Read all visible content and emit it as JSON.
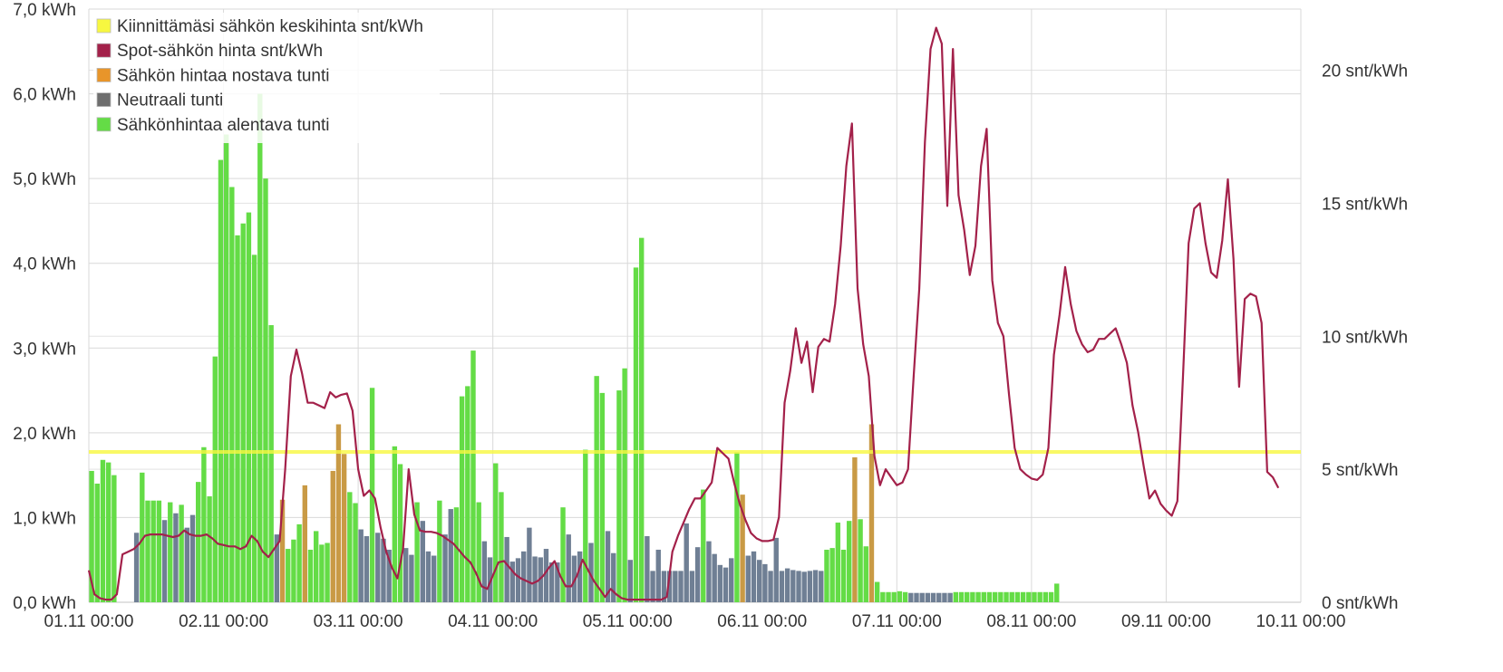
{
  "chart_data": {
    "type": "bar",
    "title": "",
    "xlabel": "",
    "ylabel": "",
    "legend_position": "top-left",
    "grid": true,
    "legend": [
      {
        "key": "fixed",
        "label": "Kiinnittämäsi sähkön keskihinta snt/kWh",
        "color": "#f7f740"
      },
      {
        "key": "spot",
        "label": "Spot-sähkön hinta snt/kWh",
        "color": "#a3214a"
      },
      {
        "key": "raise",
        "label": "Sähkön hintaa nostava tunti",
        "color": "#e8952a"
      },
      {
        "key": "neutral",
        "label": "Neutraali tunti",
        "color": "#6e6e6e"
      },
      {
        "key": "lower",
        "label": "Sähkönhintaa alentava tunti",
        "color": "#64dc46"
      }
    ],
    "y_left": {
      "min": 0,
      "max": 7,
      "unit": "kWh",
      "ticks": [
        "0,0 kWh",
        "1,0 kWh",
        "2,0 kWh",
        "3,0 kWh",
        "4,0 kWh",
        "5,0 kWh",
        "6,0 kWh",
        "7,0 kWh"
      ]
    },
    "y_right": {
      "min": 0,
      "max": 22.3,
      "unit": "snt/kWh",
      "ticks": [
        "0 snt/kWh",
        "5 snt/kWh",
        "10 snt/kWh",
        "15 snt/kWh",
        "20 snt/kWh"
      ],
      "tick_values": [
        0,
        5,
        10,
        15,
        20
      ]
    },
    "x_ticks": [
      "01.11 00:00",
      "02.11 00:00",
      "03.11 00:00",
      "04.11 00:00",
      "05.11 00:00",
      "06.11 00:00",
      "07.11 00:00",
      "08.11 00:00",
      "09.11 00:00",
      "10.11 00:00"
    ],
    "hours_total": 216,
    "fixed_price": 5.65,
    "consumption_segments": [
      {
        "t": "g",
        "v": [
          1.55,
          1.4,
          1.68,
          1.65,
          1.5
        ]
      },
      {
        "t": "e",
        "v": [
          0,
          0,
          0
        ]
      },
      {
        "t": "n",
        "v": [
          0.82
        ]
      },
      {
        "t": "g",
        "v": [
          1.53,
          1.2,
          1.2,
          1.2
        ]
      },
      {
        "t": "n",
        "v": [
          0.97
        ]
      },
      {
        "t": "g",
        "v": [
          1.18
        ]
      },
      {
        "t": "n",
        "v": [
          1.05
        ]
      },
      {
        "t": "g",
        "v": [
          1.15
        ]
      },
      {
        "t": "n",
        "v": [
          0.88,
          1.03
        ]
      },
      {
        "t": "g",
        "v": [
          1.42,
          1.83,
          1.25,
          2.9,
          5.22,
          5.52,
          4.9,
          4.33,
          4.47,
          4.6,
          4.1,
          6.0,
          5.0,
          3.27
        ]
      },
      {
        "t": "n",
        "v": [
          0.8
        ]
      },
      {
        "t": "r",
        "v": [
          1.21
        ]
      },
      {
        "t": "g",
        "v": [
          0.63,
          0.74,
          0.92
        ]
      },
      {
        "t": "r",
        "v": [
          1.38
        ]
      },
      {
        "t": "g",
        "v": [
          0.62,
          0.84,
          0.68,
          0.7
        ]
      },
      {
        "t": "r",
        "v": [
          1.55,
          2.1,
          1.75
        ]
      },
      {
        "t": "g",
        "v": [
          1.3,
          1.17
        ]
      },
      {
        "t": "n",
        "v": [
          0.86,
          0.78
        ]
      },
      {
        "t": "g",
        "v": [
          2.53
        ]
      },
      {
        "t": "n",
        "v": [
          0.82,
          0.75,
          0.62
        ]
      },
      {
        "t": "g",
        "v": [
          1.84,
          1.63
        ]
      },
      {
        "t": "n",
        "v": [
          0.64,
          0.56
        ]
      },
      {
        "t": "g",
        "v": [
          1.18
        ]
      },
      {
        "t": "n",
        "v": [
          0.96,
          0.6,
          0.55
        ]
      },
      {
        "t": "g",
        "v": [
          1.2
        ]
      },
      {
        "t": "n",
        "v": [
          0.8,
          1.1
        ]
      },
      {
        "t": "g",
        "v": [
          1.12,
          2.43,
          2.55,
          2.97,
          1.18
        ]
      },
      {
        "t": "n",
        "v": [
          0.72,
          0.53
        ]
      },
      {
        "t": "g",
        "v": [
          1.64,
          1.3
        ]
      },
      {
        "t": "n",
        "v": [
          0.77,
          0.48,
          0.52,
          0.6,
          0.88,
          0.54,
          0.53,
          0.63,
          0.47,
          0.47
        ]
      },
      {
        "t": "g",
        "v": [
          1.12
        ]
      },
      {
        "t": "n",
        "v": [
          0.8,
          0.55,
          0.6
        ]
      },
      {
        "t": "g",
        "v": [
          1.8
        ]
      },
      {
        "t": "n",
        "v": [
          0.7
        ]
      },
      {
        "t": "g",
        "v": [
          2.67,
          2.47
        ]
      },
      {
        "t": "n",
        "v": [
          0.84,
          0.58
        ]
      },
      {
        "t": "g",
        "v": [
          2.5,
          2.76
        ]
      },
      {
        "t": "n",
        "v": [
          0.5
        ]
      },
      {
        "t": "g",
        "v": [
          3.95,
          4.3
        ]
      },
      {
        "t": "n",
        "v": [
          0.78,
          0.37,
          0.62,
          0.37,
          0.37,
          0.37,
          0.37,
          0.93,
          0.37,
          0.65
        ]
      },
      {
        "t": "g",
        "v": [
          1.33
        ]
      },
      {
        "t": "n",
        "v": [
          0.72,
          0.57,
          0.44,
          0.41,
          0.52
        ]
      },
      {
        "t": "g",
        "v": [
          1.77
        ]
      },
      {
        "t": "r",
        "v": [
          1.27
        ]
      },
      {
        "t": "n",
        "v": [
          0.55,
          0.6,
          0.5,
          0.45,
          0.37,
          0.76,
          0.37,
          0.4,
          0.38,
          0.37,
          0.36,
          0.37,
          0.38,
          0.37
        ]
      },
      {
        "t": "g",
        "v": [
          0.62,
          0.64,
          0.94,
          0.62,
          0.96
        ]
      },
      {
        "t": "r",
        "v": [
          1.71
        ]
      },
      {
        "t": "g",
        "v": [
          0.98,
          0.66
        ]
      },
      {
        "t": "r",
        "v": [
          2.1
        ]
      },
      {
        "t": "g",
        "v": [
          0.24,
          0.12,
          0.12,
          0.12,
          0.13,
          0.12
        ]
      },
      {
        "t": "n",
        "v": [
          0.11,
          0.11,
          0.11,
          0.11,
          0.11,
          0.11,
          0.11,
          0.11
        ]
      },
      {
        "t": "g",
        "v": [
          0.12,
          0.12,
          0.12,
          0.12,
          0.12,
          0.12,
          0.12,
          0.12,
          0.12,
          0.12,
          0.12,
          0.12,
          0.12,
          0.12,
          0.12,
          0.12,
          0.12,
          0.12,
          0.22
        ]
      }
    ],
    "spot_price_points": [
      [
        0,
        1.2
      ],
      [
        1,
        0.3
      ],
      [
        2,
        0.15
      ],
      [
        3,
        0.1
      ],
      [
        4,
        0.1
      ],
      [
        5,
        0.3
      ],
      [
        6,
        1.8
      ],
      [
        7,
        1.9
      ],
      [
        8,
        2.0
      ],
      [
        9,
        2.2
      ],
      [
        10,
        2.5
      ],
      [
        11,
        2.55
      ],
      [
        12,
        2.55
      ],
      [
        13,
        2.55
      ],
      [
        14,
        2.5
      ],
      [
        15,
        2.45
      ],
      [
        16,
        2.5
      ],
      [
        17,
        2.7
      ],
      [
        18,
        2.55
      ],
      [
        19,
        2.5
      ],
      [
        20,
        2.5
      ],
      [
        21,
        2.55
      ],
      [
        22,
        2.4
      ],
      [
        23,
        2.2
      ],
      [
        24,
        2.15
      ],
      [
        25,
        2.1
      ],
      [
        26,
        2.1
      ],
      [
        27,
        2.0
      ],
      [
        28,
        2.1
      ],
      [
        29,
        2.5
      ],
      [
        30,
        2.3
      ],
      [
        31,
        1.9
      ],
      [
        32,
        1.7
      ],
      [
        33,
        2.0
      ],
      [
        34,
        2.3
      ],
      [
        35,
        5.0
      ],
      [
        36,
        8.5
      ],
      [
        37,
        9.5
      ],
      [
        38,
        8.6
      ],
      [
        39,
        7.5
      ],
      [
        40,
        7.5
      ],
      [
        41,
        7.4
      ],
      [
        42,
        7.3
      ],
      [
        43,
        7.9
      ],
      [
        44,
        7.7
      ],
      [
        45,
        7.8
      ],
      [
        46,
        7.85
      ],
      [
        47,
        7.2
      ],
      [
        48,
        5.0
      ],
      [
        49,
        4.0
      ],
      [
        50,
        4.2
      ],
      [
        51,
        3.9
      ],
      [
        52,
        2.8
      ],
      [
        53,
        1.9
      ],
      [
        54,
        1.3
      ],
      [
        55,
        0.9
      ],
      [
        56,
        2.0
      ],
      [
        57,
        5.0
      ],
      [
        58,
        3.3
      ],
      [
        59,
        2.7
      ],
      [
        60,
        2.65
      ],
      [
        61,
        2.65
      ],
      [
        62,
        2.6
      ],
      [
        63,
        2.5
      ],
      [
        64,
        2.35
      ],
      [
        65,
        2.2
      ],
      [
        66,
        1.95
      ],
      [
        67,
        1.7
      ],
      [
        68,
        1.5
      ],
      [
        69,
        1.1
      ],
      [
        70,
        0.6
      ],
      [
        71,
        0.5
      ],
      [
        72,
        1.0
      ],
      [
        73,
        1.5
      ],
      [
        74,
        1.55
      ],
      [
        75,
        1.3
      ],
      [
        76,
        1.05
      ],
      [
        77,
        0.9
      ],
      [
        78,
        0.8
      ],
      [
        79,
        0.7
      ],
      [
        80,
        0.8
      ],
      [
        81,
        1.0
      ],
      [
        82,
        1.3
      ],
      [
        83,
        1.55
      ],
      [
        84,
        1.0
      ],
      [
        85,
        0.6
      ],
      [
        86,
        0.6
      ],
      [
        87,
        1.0
      ],
      [
        88,
        1.6
      ],
      [
        89,
        1.2
      ],
      [
        90,
        0.8
      ],
      [
        91,
        0.5
      ],
      [
        92,
        0.2
      ],
      [
        93,
        0.5
      ],
      [
        94,
        0.3
      ],
      [
        95,
        0.15
      ],
      [
        96,
        0.1
      ],
      [
        97,
        0.1
      ],
      [
        98,
        0.1
      ],
      [
        99,
        0.1
      ],
      [
        100,
        0.1
      ],
      [
        101,
        0.1
      ],
      [
        102,
        0.1
      ],
      [
        103,
        0.2
      ],
      [
        104,
        1.9
      ],
      [
        105,
        2.5
      ],
      [
        106,
        3.0
      ],
      [
        107,
        3.5
      ],
      [
        108,
        3.9
      ],
      [
        109,
        3.9
      ],
      [
        110,
        4.2
      ],
      [
        111,
        4.5
      ],
      [
        112,
        5.8
      ],
      [
        113,
        5.6
      ],
      [
        114,
        5.4
      ],
      [
        115,
        4.5
      ],
      [
        116,
        3.7
      ],
      [
        117,
        3.1
      ],
      [
        118,
        2.6
      ],
      [
        119,
        2.4
      ],
      [
        120,
        2.3
      ],
      [
        121,
        2.3
      ],
      [
        122,
        2.35
      ],
      [
        123,
        3.2
      ],
      [
        124,
        7.5
      ],
      [
        125,
        8.7
      ],
      [
        126,
        10.3
      ],
      [
        127,
        9.0
      ],
      [
        128,
        9.8
      ],
      [
        129,
        7.9
      ],
      [
        130,
        9.6
      ],
      [
        131,
        9.9
      ],
      [
        132,
        9.8
      ],
      [
        133,
        11.2
      ],
      [
        134,
        13.4
      ],
      [
        135,
        16.4
      ],
      [
        136,
        18.0
      ],
      [
        137,
        11.8
      ],
      [
        138,
        9.7
      ],
      [
        139,
        8.5
      ],
      [
        140,
        5.5
      ],
      [
        141,
        4.4
      ],
      [
        142,
        5.0
      ],
      [
        143,
        4.7
      ],
      [
        144,
        4.4
      ],
      [
        145,
        4.5
      ],
      [
        146,
        5.0
      ],
      [
        147,
        8.5
      ],
      [
        148,
        11.8
      ],
      [
        149,
        17.3
      ],
      [
        150,
        20.8
      ],
      [
        151,
        21.6
      ],
      [
        152,
        21.0
      ],
      [
        153,
        14.9
      ],
      [
        154,
        20.8
      ],
      [
        155,
        15.3
      ],
      [
        156,
        14.0
      ],
      [
        157,
        12.3
      ],
      [
        158,
        13.4
      ],
      [
        159,
        16.4
      ],
      [
        160,
        17.8
      ],
      [
        161,
        12.1
      ],
      [
        162,
        10.5
      ],
      [
        163,
        10.0
      ],
      [
        164,
        7.8
      ],
      [
        165,
        5.8
      ],
      [
        166,
        5.0
      ],
      [
        167,
        4.8
      ],
      [
        168,
        4.65
      ],
      [
        169,
        4.6
      ],
      [
        170,
        4.8
      ],
      [
        171,
        5.8
      ],
      [
        172,
        9.3
      ],
      [
        173,
        10.8
      ],
      [
        174,
        12.6
      ],
      [
        175,
        11.2
      ],
      [
        176,
        10.2
      ],
      [
        177,
        9.7
      ],
      [
        178,
        9.4
      ],
      [
        179,
        9.5
      ],
      [
        180,
        9.9
      ],
      [
        181,
        9.9
      ],
      [
        182,
        10.1
      ],
      [
        183,
        10.3
      ],
      [
        184,
        9.7
      ],
      [
        185,
        9.0
      ],
      [
        186,
        7.4
      ],
      [
        187,
        6.4
      ],
      [
        188,
        5.1
      ],
      [
        189,
        3.9
      ],
      [
        190,
        4.2
      ],
      [
        191,
        3.7
      ],
      [
        192,
        3.45
      ],
      [
        193,
        3.25
      ],
      [
        194,
        3.8
      ],
      [
        195,
        8.5
      ],
      [
        196,
        13.5
      ],
      [
        197,
        14.8
      ],
      [
        198,
        15.0
      ],
      [
        199,
        13.5
      ],
      [
        200,
        12.4
      ],
      [
        201,
        12.2
      ],
      [
        202,
        13.6
      ],
      [
        203,
        15.9
      ],
      [
        204,
        12.9
      ],
      [
        205,
        8.1
      ],
      [
        206,
        11.4
      ],
      [
        207,
        11.6
      ],
      [
        208,
        11.5
      ],
      [
        209,
        10.5
      ],
      [
        210,
        4.9
      ],
      [
        211,
        4.7
      ],
      [
        212,
        4.3
      ]
    ]
  }
}
